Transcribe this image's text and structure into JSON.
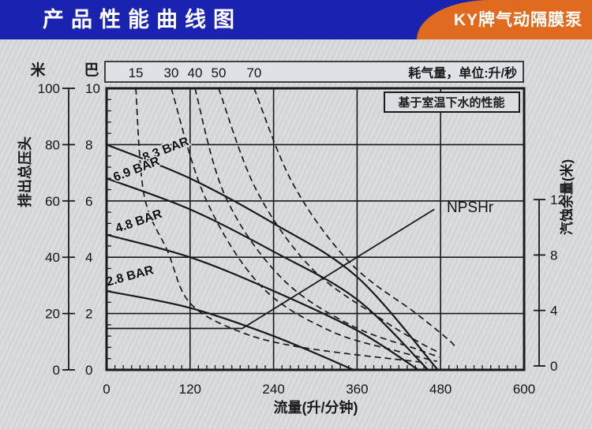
{
  "header": {
    "title": "产品性能曲线图",
    "badge": "KY牌气动隔膜泵",
    "banner_color": "#1a23af",
    "badge_color": "#e06b1e"
  },
  "chart_data": {
    "type": "line",
    "title": "产品性能曲线图",
    "xlabel": "流量(升/分钟)",
    "air_note": "耗气量，单位:升/秒",
    "note_box": "基于室温下水的性能",
    "grid": true,
    "x_axis": {
      "range": [
        0,
        600
      ],
      "ticks": [
        0,
        120,
        240,
        360,
        480,
        600
      ],
      "minor_step": 12
    },
    "left_axis": {
      "unit_top": "米",
      "label": "排出总压头",
      "range": [
        0,
        100
      ],
      "ticks": [
        0,
        20,
        40,
        60,
        80,
        100
      ],
      "minor_step": 4
    },
    "bar_axis": {
      "unit_top": "巴",
      "ticks": [
        0,
        2,
        4,
        6,
        8,
        10
      ]
    },
    "right_axis": {
      "label": "汽蚀余量(米)",
      "range": [
        0,
        12
      ],
      "ticks": [
        0,
        4,
        8,
        12
      ]
    },
    "head_curves": [
      {
        "label": "8.3 BAR",
        "label_pos": [
          87,
          77
        ],
        "label_angle": -21,
        "points": [
          [
            0,
            80
          ],
          [
            120,
            68
          ],
          [
            240,
            52
          ],
          [
            360,
            33
          ],
          [
            476,
            0
          ]
        ]
      },
      {
        "label": "6.9 BAR",
        "label_pos": [
          45,
          70
        ],
        "label_angle": -21,
        "points": [
          [
            0,
            68
          ],
          [
            120,
            57
          ],
          [
            240,
            42
          ],
          [
            360,
            25
          ],
          [
            462,
            0
          ]
        ]
      },
      {
        "label": "4.8 BAR",
        "label_pos": [
          48,
          51.5
        ],
        "label_angle": -19,
        "points": [
          [
            0,
            48
          ],
          [
            120,
            40
          ],
          [
            240,
            28
          ],
          [
            360,
            14
          ],
          [
            448,
            0
          ]
        ]
      },
      {
        "label": "2.8 BAR",
        "label_pos": [
          35,
          32
        ],
        "label_angle": -15,
        "points": [
          [
            0,
            28
          ],
          [
            120,
            22
          ],
          [
            240,
            12
          ],
          [
            355,
            0
          ]
        ]
      }
    ],
    "air_curves": [
      {
        "label": "15",
        "points": [
          [
            42,
            100
          ],
          [
            54,
            62
          ],
          [
            88,
            42
          ],
          [
            119,
            24
          ],
          [
            187,
            14
          ],
          [
            280,
            8
          ],
          [
            460,
            2.5
          ]
        ]
      },
      {
        "label": "30",
        "points": [
          [
            93,
            100
          ],
          [
            142,
            61
          ],
          [
            221,
            30
          ],
          [
            320,
            14
          ],
          [
            420,
            6.5
          ],
          [
            475,
            3
          ]
        ]
      },
      {
        "label": "40",
        "points": [
          [
            127,
            100
          ],
          [
            170,
            62
          ],
          [
            250,
            33
          ],
          [
            350,
            16
          ],
          [
            450,
            7
          ],
          [
            478,
            4.5
          ]
        ]
      },
      {
        "label": "50",
        "points": [
          [
            161,
            100
          ],
          [
            215,
            64
          ],
          [
            295,
            36
          ],
          [
            395,
            18
          ],
          [
            455,
            9
          ],
          [
            480,
            6
          ]
        ]
      },
      {
        "label": "70",
        "points": [
          [
            212,
            100
          ],
          [
            268,
            66
          ],
          [
            350,
            38
          ],
          [
            445,
            20
          ],
          [
            490,
            11
          ],
          [
            500,
            8.5
          ]
        ]
      }
    ],
    "npshr": {
      "label": "NPSHr",
      "label_pos": [
        489,
        11.1
      ],
      "points": [
        [
          0,
          2.7
        ],
        [
          195,
          2.7
        ],
        [
          471,
          11.3
        ]
      ]
    }
  }
}
